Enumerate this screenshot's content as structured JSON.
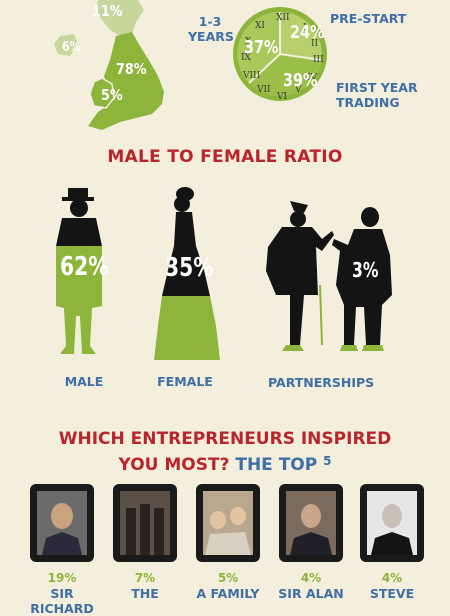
{
  "map": {
    "values": [
      "11%",
      "6%",
      "78%",
      "5%"
    ]
  },
  "business_stage": {
    "labels": {
      "years_line1": "1-3",
      "years_line2": "YEARS",
      "prestart": "PRE-START",
      "first_year_line1": "FIRST YEAR",
      "first_year_line2": "TRADING"
    },
    "values": {
      "years": "37%",
      "prestart": "24%",
      "first_year": "39%"
    }
  },
  "gender": {
    "title": "MALE TO FEMALE RATIO",
    "male": {
      "value": "62%",
      "label": "MALE"
    },
    "female": {
      "value": "35%",
      "label": "FEMALE"
    },
    "partnerships": {
      "value": "3%",
      "label": "PARTNERSHIPS"
    }
  },
  "entrepreneurs": {
    "title_line1": "WHICH ENTREPRENEURS INSPIRED",
    "title_line2a": "YOU MOST?",
    "title_line2b": "THE TOP",
    "title_line2c": "5",
    "items": [
      {
        "value": "19%",
        "name": "SIR RICHARD"
      },
      {
        "value": "7%",
        "name": "THE"
      },
      {
        "value": "5%",
        "name": "A FAMILY"
      },
      {
        "value": "4%",
        "name": "SIR ALAN"
      },
      {
        "value": "4%",
        "name": "STEVE"
      }
    ]
  },
  "colors": {
    "background": "#f4eedc",
    "green": "#8db43b",
    "blue": "#3f6fa6",
    "red": "#b8262b",
    "black": "#141414"
  }
}
